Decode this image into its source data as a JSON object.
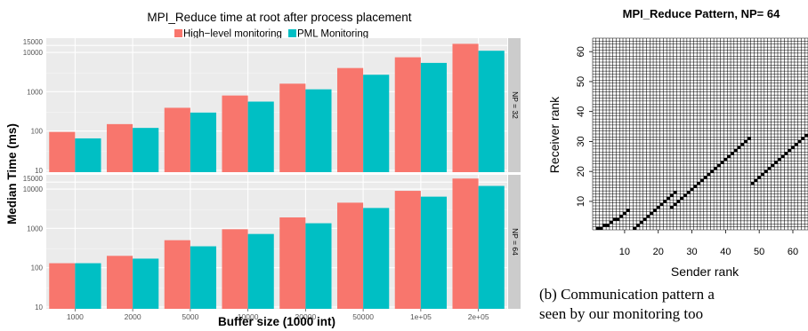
{
  "chart_data": [
    {
      "type": "bar",
      "title": "MPI_Reduce time at root after process placement",
      "xlabel": "Buffer size  (1000 int)",
      "ylabel": "Median Time (ms)",
      "yscale": "log",
      "categories": [
        "1000",
        "2000",
        "5000",
        "10000",
        "20000",
        "50000",
        "1e+05",
        "2e+05"
      ],
      "ytick_labels": [
        "10",
        "100",
        "1000",
        "10000",
        "15000"
      ],
      "legend_position": "top",
      "grid": true,
      "panels": [
        {
          "label": "NP = 32",
          "ylim": [
            9,
            23000
          ],
          "series": [
            {
              "name": "High−level monitoring",
              "color": "#f8766d",
              "values": [
                95,
                150,
                390,
                800,
                1600,
                4000,
                7500,
                16500
              ]
            },
            {
              "name": "PML Monitoring",
              "color": "#00bfc4",
              "values": [
                65,
                120,
                295,
                560,
                1150,
                2700,
                5400,
                11000
              ]
            }
          ]
        },
        {
          "label": "NP = 64",
          "ylim": [
            9,
            23000
          ],
          "series": [
            {
              "name": "High−level monitoring",
              "color": "#f8766d",
              "values": [
                130,
                200,
                500,
                950,
                1900,
                4500,
                9000,
                18500
              ]
            },
            {
              "name": "PML Monitoring",
              "color": "#00bfc4",
              "values": [
                130,
                170,
                350,
                720,
                1350,
                3300,
                6400,
                12000
              ]
            }
          ]
        }
      ]
    },
    {
      "type": "heatmap",
      "title": "MPI_Reduce Pattern, NP= 64",
      "xlabel": "Sender rank",
      "ylabel": "Receiver rank",
      "xlim": [
        1,
        64
      ],
      "ylim": [
        1,
        64
      ],
      "x_ticks": [
        10,
        20,
        30,
        40,
        50,
        60
      ],
      "y_ticks": [
        10,
        20,
        30,
        40,
        50,
        60
      ],
      "cells": [
        [
          2,
          1
        ],
        [
          3,
          1
        ],
        [
          4,
          2
        ],
        [
          5,
          2
        ],
        [
          6,
          3
        ],
        [
          7,
          4
        ],
        [
          8,
          4
        ],
        [
          9,
          5
        ],
        [
          10,
          6
        ],
        [
          11,
          7
        ],
        [
          13,
          1
        ],
        [
          14,
          2
        ],
        [
          15,
          3
        ],
        [
          16,
          4
        ],
        [
          17,
          5
        ],
        [
          18,
          6
        ],
        [
          19,
          7
        ],
        [
          20,
          8
        ],
        [
          21,
          9
        ],
        [
          22,
          10
        ],
        [
          23,
          11
        ],
        [
          24,
          12
        ],
        [
          25,
          13
        ],
        [
          24,
          8
        ],
        [
          25,
          9
        ],
        [
          26,
          10
        ],
        [
          27,
          11
        ],
        [
          28,
          12
        ],
        [
          29,
          13
        ],
        [
          30,
          14
        ],
        [
          31,
          15
        ],
        [
          32,
          16
        ],
        [
          33,
          17
        ],
        [
          34,
          18
        ],
        [
          35,
          19
        ],
        [
          36,
          20
        ],
        [
          37,
          21
        ],
        [
          38,
          22
        ],
        [
          39,
          23
        ],
        [
          40,
          24
        ],
        [
          41,
          25
        ],
        [
          42,
          26
        ],
        [
          43,
          27
        ],
        [
          44,
          28
        ],
        [
          45,
          29
        ],
        [
          46,
          30
        ],
        [
          47,
          31
        ],
        [
          48,
          16
        ],
        [
          49,
          17
        ],
        [
          50,
          18
        ],
        [
          51,
          19
        ],
        [
          52,
          20
        ],
        [
          53,
          21
        ],
        [
          54,
          22
        ],
        [
          55,
          23
        ],
        [
          56,
          24
        ],
        [
          57,
          25
        ],
        [
          58,
          26
        ],
        [
          59,
          27
        ],
        [
          60,
          28
        ],
        [
          61,
          29
        ],
        [
          62,
          30
        ],
        [
          63,
          31
        ],
        [
          64,
          32
        ]
      ]
    }
  ],
  "caption": {
    "line1": "(b) Communication pattern a",
    "line2": "seen  by  our  monitoring  too"
  }
}
